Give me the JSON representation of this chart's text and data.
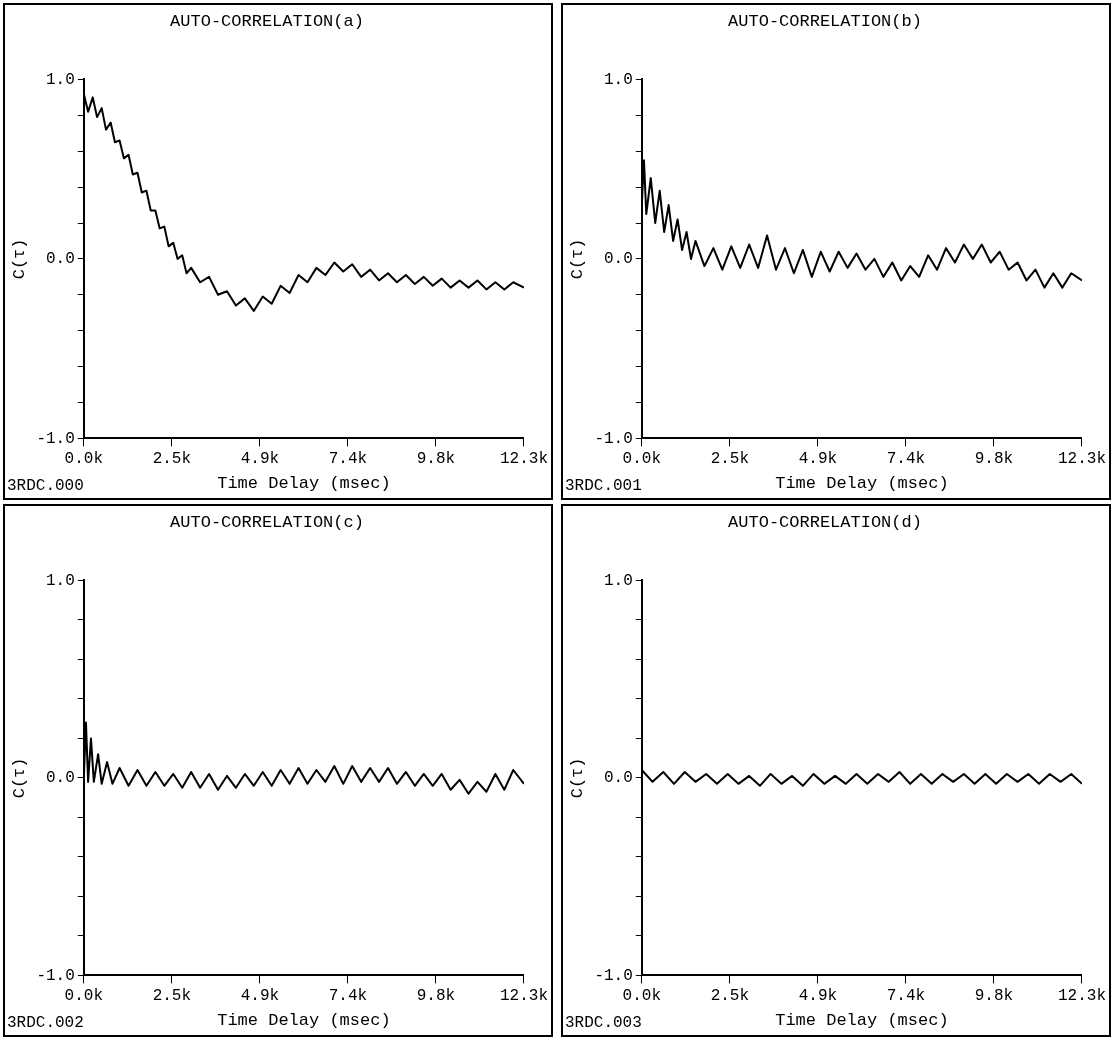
{
  "chart_data": [
    {
      "type": "line",
      "title": "AUTO-CORRELATION(a)",
      "xlabel": "Time Delay (msec)",
      "ylabel": "C(τ)",
      "annotations": [
        "3RDC.000"
      ],
      "color": "#000000",
      "xlim": [
        0,
        12300
      ],
      "xticks": [
        {
          "value": 0,
          "label": "0.0k"
        },
        {
          "value": 2460,
          "label": "2.5k"
        },
        {
          "value": 4920,
          "label": "4.9k"
        },
        {
          "value": 7380,
          "label": "7.4k"
        },
        {
          "value": 9840,
          "label": "9.8k"
        },
        {
          "value": 12300,
          "label": "12.3k"
        }
      ],
      "ylim": [
        -1,
        1
      ],
      "yticks": [
        {
          "value": -1,
          "label": "-1.0"
        },
        {
          "value": -0.8,
          "label": null
        },
        {
          "value": -0.6,
          "label": null
        },
        {
          "value": -0.4,
          "label": null
        },
        {
          "value": -0.2,
          "label": null
        },
        {
          "value": 0,
          "label": "0.0"
        },
        {
          "value": 0.2,
          "label": null
        },
        {
          "value": 0.4,
          "label": null
        },
        {
          "value": 0.6,
          "label": null
        },
        {
          "value": 0.8,
          "label": null
        },
        {
          "value": 1,
          "label": "1.0"
        }
      ],
      "x": [
        0,
        120,
        250,
        370,
        500,
        620,
        750,
        870,
        1000,
        1120,
        1250,
        1370,
        1500,
        1620,
        1750,
        1870,
        2000,
        2120,
        2250,
        2370,
        2500,
        2620,
        2750,
        2870,
        3000,
        3250,
        3500,
        3750,
        4000,
        4250,
        4500,
        4750,
        5000,
        5250,
        5500,
        5750,
        6000,
        6250,
        6500,
        6750,
        7000,
        7250,
        7500,
        7750,
        8000,
        8250,
        8500,
        8750,
        9000,
        9250,
        9500,
        9750,
        10000,
        10250,
        10500,
        10750,
        11000,
        11250,
        11500,
        11750,
        12000,
        12300
      ],
      "values": [
        0.92,
        0.82,
        0.9,
        0.79,
        0.84,
        0.72,
        0.76,
        0.65,
        0.66,
        0.56,
        0.58,
        0.47,
        0.48,
        0.37,
        0.38,
        0.27,
        0.27,
        0.17,
        0.18,
        0.07,
        0.09,
        0.0,
        0.02,
        -0.08,
        -0.05,
        -0.13,
        -0.1,
        -0.2,
        -0.18,
        -0.26,
        -0.22,
        -0.29,
        -0.21,
        -0.25,
        -0.15,
        -0.19,
        -0.09,
        -0.13,
        -0.05,
        -0.09,
        -0.02,
        -0.07,
        -0.03,
        -0.1,
        -0.06,
        -0.12,
        -0.08,
        -0.13,
        -0.09,
        -0.14,
        -0.1,
        -0.15,
        -0.11,
        -0.16,
        -0.12,
        -0.16,
        -0.12,
        -0.17,
        -0.13,
        -0.17,
        -0.13,
        -0.16
      ]
    },
    {
      "type": "line",
      "title": "AUTO-CORRELATION(b)",
      "xlabel": "Time Delay (msec)",
      "ylabel": "C(τ)",
      "annotations": [
        "3RDC.001"
      ],
      "color": "#000000",
      "xlim": [
        0,
        12300
      ],
      "xticks": [
        {
          "value": 0,
          "label": "0.0k"
        },
        {
          "value": 2460,
          "label": "2.5k"
        },
        {
          "value": 4920,
          "label": "4.9k"
        },
        {
          "value": 7380,
          "label": "7.4k"
        },
        {
          "value": 9840,
          "label": "9.8k"
        },
        {
          "value": 12300,
          "label": "12.3k"
        }
      ],
      "ylim": [
        -1,
        1
      ],
      "yticks": [
        {
          "value": -1,
          "label": "-1.0"
        },
        {
          "value": -0.8,
          "label": null
        },
        {
          "value": -0.6,
          "label": null
        },
        {
          "value": -0.4,
          "label": null
        },
        {
          "value": -0.2,
          "label": null
        },
        {
          "value": 0,
          "label": "0.0"
        },
        {
          "value": 0.2,
          "label": null
        },
        {
          "value": 0.4,
          "label": null
        },
        {
          "value": 0.6,
          "label": null
        },
        {
          "value": 0.8,
          "label": null
        },
        {
          "value": 1,
          "label": "1.0"
        }
      ],
      "x": [
        0,
        60,
        125,
        250,
        375,
        500,
        625,
        750,
        875,
        1000,
        1125,
        1250,
        1375,
        1500,
        1750,
        2000,
        2250,
        2500,
        2750,
        3000,
        3250,
        3500,
        3750,
        4000,
        4250,
        4500,
        4750,
        5000,
        5250,
        5500,
        5750,
        6000,
        6250,
        6500,
        6750,
        7000,
        7250,
        7500,
        7750,
        8000,
        8250,
        8500,
        8750,
        9000,
        9250,
        9500,
        9750,
        10000,
        10250,
        10500,
        10750,
        11000,
        11250,
        11500,
        11750,
        12000,
        12300
      ],
      "values": [
        0.3,
        0.55,
        0.25,
        0.45,
        0.2,
        0.38,
        0.15,
        0.3,
        0.1,
        0.22,
        0.05,
        0.15,
        0.0,
        0.1,
        -0.04,
        0.06,
        -0.06,
        0.07,
        -0.05,
        0.08,
        -0.05,
        0.13,
        -0.06,
        0.06,
        -0.08,
        0.05,
        -0.1,
        0.04,
        -0.07,
        0.04,
        -0.05,
        0.03,
        -0.06,
        0.0,
        -0.1,
        -0.02,
        -0.12,
        -0.04,
        -0.1,
        0.02,
        -0.06,
        0.06,
        -0.02,
        0.08,
        0.0,
        0.08,
        -0.02,
        0.04,
        -0.06,
        -0.02,
        -0.12,
        -0.06,
        -0.16,
        -0.08,
        -0.16,
        -0.08,
        -0.12
      ]
    },
    {
      "type": "line",
      "title": "AUTO-CORRELATION(c)",
      "xlabel": "Time Delay (msec)",
      "ylabel": "C(τ)",
      "annotations": [
        "3RDC.002"
      ],
      "color": "#000000",
      "xlim": [
        0,
        12300
      ],
      "xticks": [
        {
          "value": 0,
          "label": "0.0k"
        },
        {
          "value": 2460,
          "label": "2.5k"
        },
        {
          "value": 4920,
          "label": "4.9k"
        },
        {
          "value": 7380,
          "label": "7.4k"
        },
        {
          "value": 9840,
          "label": "9.8k"
        },
        {
          "value": 12300,
          "label": "12.3k"
        }
      ],
      "ylim": [
        -1,
        1
      ],
      "yticks": [
        {
          "value": -1,
          "label": "-1.0"
        },
        {
          "value": -0.8,
          "label": null
        },
        {
          "value": -0.6,
          "label": null
        },
        {
          "value": -0.4,
          "label": null
        },
        {
          "value": -0.2,
          "label": null
        },
        {
          "value": 0,
          "label": "0.0"
        },
        {
          "value": 0.2,
          "label": null
        },
        {
          "value": 0.4,
          "label": null
        },
        {
          "value": 0.6,
          "label": null
        },
        {
          "value": 0.8,
          "label": null
        },
        {
          "value": 1,
          "label": "1.0"
        }
      ],
      "x": [
        0,
        60,
        120,
        200,
        280,
        400,
        500,
        650,
        800,
        1000,
        1250,
        1500,
        1750,
        2000,
        2250,
        2500,
        2750,
        3000,
        3250,
        3500,
        3750,
        4000,
        4250,
        4500,
        4750,
        5000,
        5250,
        5500,
        5750,
        6000,
        6250,
        6500,
        6750,
        7000,
        7250,
        7500,
        7750,
        8000,
        8250,
        8500,
        8750,
        9000,
        9250,
        9500,
        9750,
        10000,
        10250,
        10500,
        10750,
        11000,
        11250,
        11500,
        11750,
        12000,
        12300
      ],
      "values": [
        0.0,
        0.28,
        -0.02,
        0.2,
        -0.02,
        0.12,
        -0.03,
        0.08,
        -0.03,
        0.05,
        -0.04,
        0.04,
        -0.04,
        0.03,
        -0.04,
        0.02,
        -0.05,
        0.03,
        -0.05,
        0.02,
        -0.06,
        0.01,
        -0.05,
        0.02,
        -0.04,
        0.03,
        -0.04,
        0.04,
        -0.03,
        0.05,
        -0.03,
        0.04,
        -0.02,
        0.06,
        -0.03,
        0.06,
        -0.02,
        0.05,
        -0.02,
        0.05,
        -0.03,
        0.03,
        -0.04,
        0.02,
        -0.04,
        0.02,
        -0.06,
        -0.01,
        -0.08,
        -0.02,
        -0.07,
        0.02,
        -0.06,
        0.04,
        -0.03
      ]
    },
    {
      "type": "line",
      "title": "AUTO-CORRELATION(d)",
      "xlabel": "Time Delay (msec)",
      "ylabel": "C(τ)",
      "annotations": [
        "3RDC.003"
      ],
      "color": "#000000",
      "xlim": [
        0,
        12300
      ],
      "xticks": [
        {
          "value": 0,
          "label": "0.0k"
        },
        {
          "value": 2460,
          "label": "2.5k"
        },
        {
          "value": 4920,
          "label": "4.9k"
        },
        {
          "value": 7380,
          "label": "7.4k"
        },
        {
          "value": 9840,
          "label": "9.8k"
        },
        {
          "value": 12300,
          "label": "12.3k"
        }
      ],
      "ylim": [
        -1,
        1
      ],
      "yticks": [
        {
          "value": -1,
          "label": "-1.0"
        },
        {
          "value": -0.8,
          "label": null
        },
        {
          "value": -0.6,
          "label": null
        },
        {
          "value": -0.4,
          "label": null
        },
        {
          "value": -0.2,
          "label": null
        },
        {
          "value": 0,
          "label": "0.0"
        },
        {
          "value": 0.2,
          "label": null
        },
        {
          "value": 0.4,
          "label": null
        },
        {
          "value": 0.6,
          "label": null
        },
        {
          "value": 0.8,
          "label": null
        },
        {
          "value": 1,
          "label": "1.0"
        }
      ],
      "x": [
        0,
        300,
        600,
        900,
        1200,
        1500,
        1800,
        2100,
        2400,
        2700,
        3000,
        3300,
        3600,
        3900,
        4200,
        4500,
        4800,
        5100,
        5400,
        5700,
        6000,
        6300,
        6600,
        6900,
        7200,
        7500,
        7800,
        8100,
        8400,
        8700,
        9000,
        9300,
        9600,
        9900,
        10200,
        10500,
        10800,
        11100,
        11400,
        11700,
        12000,
        12300
      ],
      "values": [
        0.04,
        -0.02,
        0.03,
        -0.03,
        0.03,
        -0.02,
        0.02,
        -0.03,
        0.02,
        -0.03,
        0.01,
        -0.04,
        0.02,
        -0.03,
        0.01,
        -0.04,
        0.02,
        -0.03,
        0.01,
        -0.03,
        0.02,
        -0.03,
        0.02,
        -0.02,
        0.03,
        -0.03,
        0.02,
        -0.03,
        0.02,
        -0.02,
        0.02,
        -0.03,
        0.02,
        -0.03,
        0.02,
        -0.02,
        0.02,
        -0.03,
        0.02,
        -0.02,
        0.02,
        -0.03
      ]
    }
  ]
}
